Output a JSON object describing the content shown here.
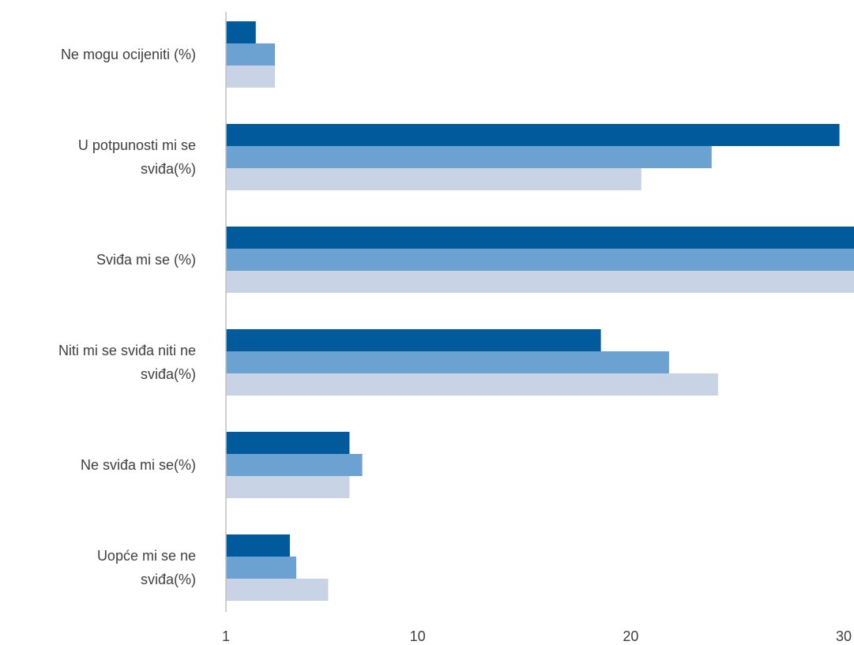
{
  "chart_data": {
    "type": "bar",
    "orientation": "horizontal",
    "categories": [
      "Ne mogu ocijeniti (%)",
      "U potpunosti mi se sviđa(%)",
      "Sviđa mi se (%)",
      "Niti mi se sviđa niti ne sviđa(%)",
      "Ne sviđa mi se(%)",
      "Uopće mi se ne sviđa(%)"
    ],
    "category_lines": [
      [
        "Ne mogu ocijeniti (%)"
      ],
      [
        "U potpunosti mi se",
        "sviđa(%)"
      ],
      [
        "Sviđa mi se (%)"
      ],
      [
        "Niti mi se sviđa niti ne",
        "sviđa(%)"
      ],
      [
        "Ne sviđa mi se(%)"
      ],
      [
        "Uopće mi se ne",
        "sviđa(%)"
      ]
    ],
    "series": [
      {
        "values": [
          2.4,
          29.8,
          31.5,
          18.6,
          6.8,
          4.0
        ],
        "color": "#005a9c"
      },
      {
        "values": [
          3.3,
          23.8,
          31.5,
          21.8,
          7.4,
          4.3
        ],
        "color": "#6ca2d1"
      },
      {
        "values": [
          3.3,
          20.5,
          31.5,
          24.1,
          6.8,
          5.8
        ],
        "color": "#c8d3e5"
      }
    ],
    "x_ticks": [
      {
        "value": 1,
        "label": "1"
      },
      {
        "value": 10,
        "label": "10"
      },
      {
        "value": 20,
        "label": "20"
      },
      {
        "value": 30,
        "label": "30"
      }
    ],
    "xlim": [
      1,
      30
    ],
    "grid": false,
    "legend": "none",
    "axis_color": "#bfbfbf",
    "label_color": "#404040"
  }
}
